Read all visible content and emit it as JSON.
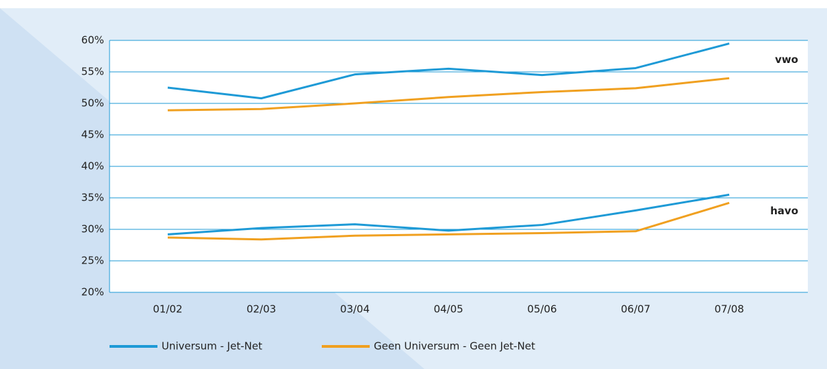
{
  "chart_data": {
    "type": "line",
    "categories": [
      "01/02",
      "02/03",
      "03/04",
      "04/05",
      "05/06",
      "06/07",
      "07/08"
    ],
    "series": [
      {
        "name": "Universum - Jet-Net",
        "color": "#1e9ad6"
      },
      {
        "name": "Geen Universum - Geen Jet-Net",
        "color": "#f0a020"
      }
    ],
    "groups": [
      {
        "label": "vwo",
        "series": [
          {
            "values": [
              52.5,
              50.8,
              54.6,
              55.5,
              54.5,
              55.6,
              59.5
            ]
          },
          {
            "values": [
              48.9,
              49.1,
              50.0,
              51.0,
              51.8,
              52.4,
              54.0
            ]
          }
        ]
      },
      {
        "label": "havo",
        "series": [
          {
            "values": [
              29.2,
              30.2,
              30.8,
              29.8,
              30.7,
              33.0,
              35.5
            ]
          },
          {
            "values": [
              28.7,
              28.4,
              29.0,
              29.2,
              29.4,
              29.7,
              34.2
            ]
          }
        ]
      }
    ],
    "ylim": [
      20,
      60
    ],
    "yticks": [
      {
        "value": 20,
        "label": "20%"
      },
      {
        "value": 25,
        "label": "25%"
      },
      {
        "value": 30,
        "label": "30%"
      },
      {
        "value": 35,
        "label": "35%"
      },
      {
        "value": 40,
        "label": "40%"
      },
      {
        "value": 45,
        "label": "45%"
      },
      {
        "value": 50,
        "label": "50%"
      },
      {
        "value": 55,
        "label": "55%"
      },
      {
        "value": 60,
        "label": "60%"
      }
    ],
    "grid": true
  }
}
